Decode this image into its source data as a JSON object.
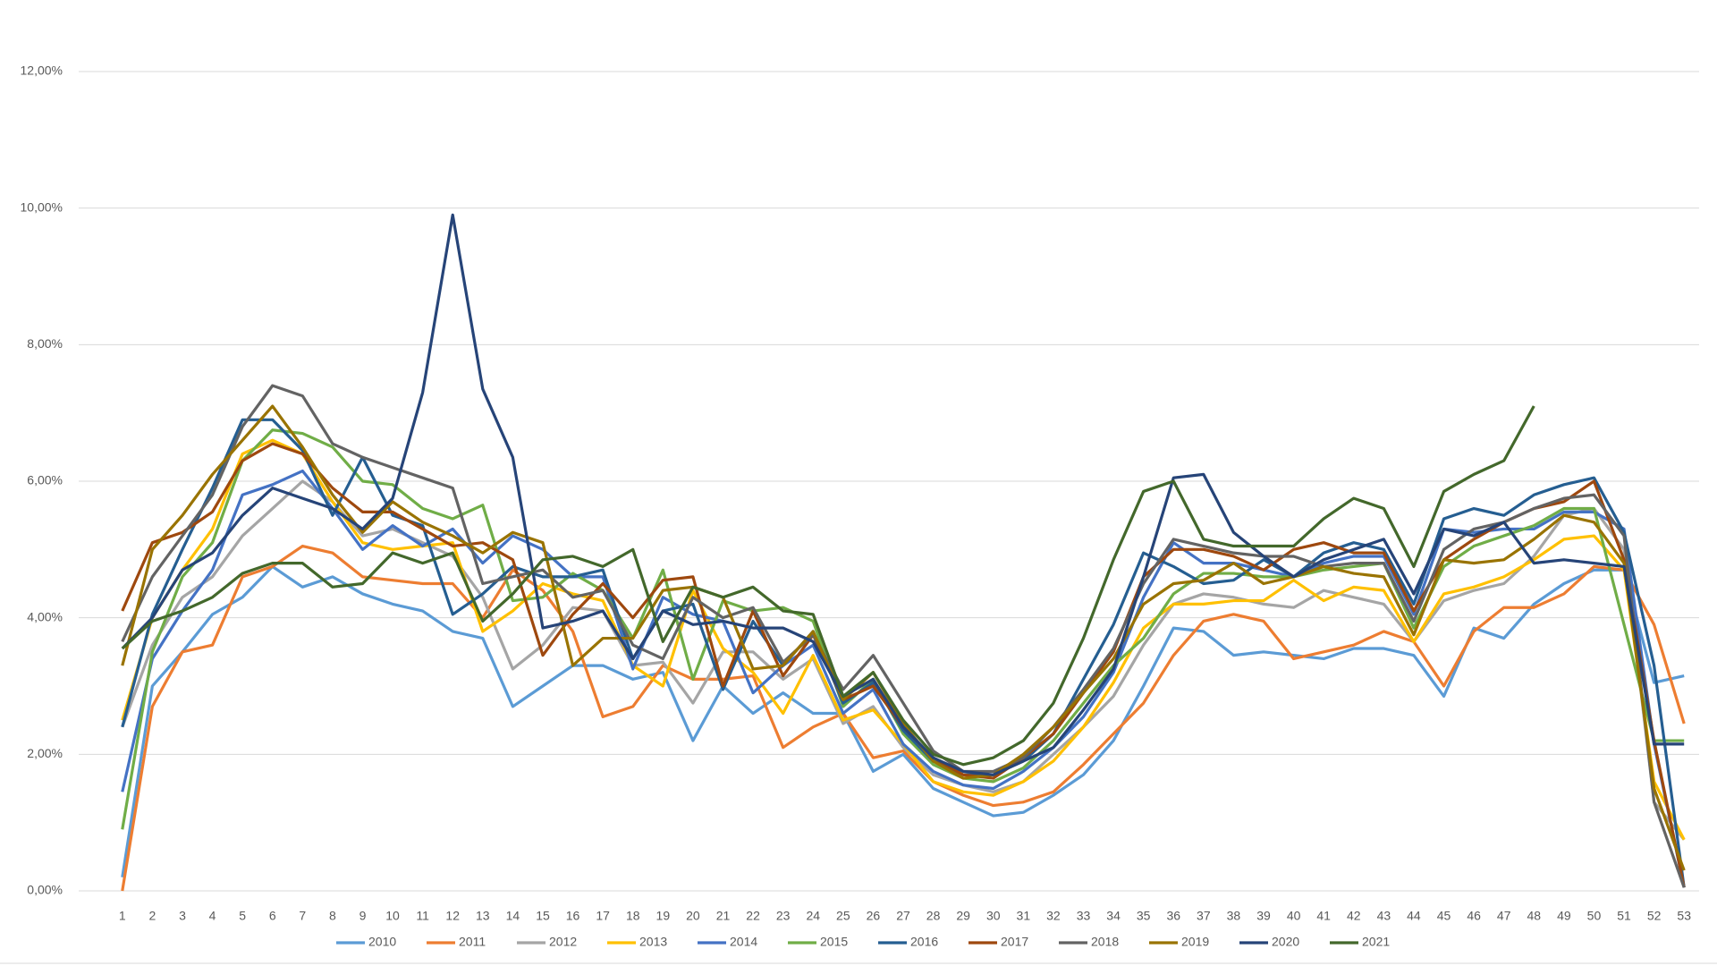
{
  "chart_data": {
    "type": "line",
    "categories": [
      "1",
      "2",
      "3",
      "4",
      "5",
      "6",
      "7",
      "8",
      "9",
      "10",
      "11",
      "12",
      "13",
      "14",
      "15",
      "16",
      "17",
      "18",
      "19",
      "20",
      "21",
      "22",
      "23",
      "24",
      "25",
      "26",
      "27",
      "28",
      "29",
      "30",
      "31",
      "32",
      "33",
      "34",
      "35",
      "36",
      "37",
      "38",
      "39",
      "40",
      "41",
      "42",
      "43",
      "44",
      "45",
      "46",
      "47",
      "48",
      "49",
      "50",
      "51",
      "52",
      "53"
    ],
    "ylim": [
      0,
      12
    ],
    "yticks": [
      {
        "value": 0,
        "label": "0,00%"
      },
      {
        "value": 2,
        "label": "2,00%"
      },
      {
        "value": 4,
        "label": "4,00%"
      },
      {
        "value": 6,
        "label": "6,00%"
      },
      {
        "value": 8,
        "label": "8,00%"
      },
      {
        "value": 10,
        "label": "10,00%"
      },
      {
        "value": 12,
        "label": "12,00%"
      }
    ],
    "grid": true,
    "legend": "bottom",
    "series": [
      {
        "name": "2010",
        "color": "#5b9bd5",
        "values": [
          0.2,
          3.0,
          3.5,
          4.05,
          4.3,
          4.75,
          4.45,
          4.6,
          4.35,
          4.2,
          4.1,
          3.8,
          3.7,
          2.7,
          3.0,
          3.3,
          3.3,
          3.1,
          3.2,
          2.2,
          3.0,
          2.6,
          2.9,
          2.6,
          2.6,
          1.75,
          2.0,
          1.5,
          1.3,
          1.1,
          1.15,
          1.4,
          1.7,
          2.2,
          3.0,
          3.85,
          3.8,
          3.45,
          3.5,
          3.45,
          3.4,
          3.55,
          3.55,
          3.45,
          2.85,
          3.85,
          3.7,
          4.2,
          4.5,
          4.7,
          4.7,
          3.05,
          3.15
        ]
      },
      {
        "name": "2011",
        "color": "#ed7d31",
        "values": [
          0.0,
          2.7,
          3.5,
          3.6,
          4.6,
          4.75,
          5.05,
          4.95,
          4.6,
          4.55,
          4.5,
          4.5,
          4.0,
          4.7,
          4.4,
          3.8,
          2.55,
          2.7,
          3.3,
          3.1,
          3.1,
          3.15,
          2.1,
          2.4,
          2.6,
          1.95,
          2.05,
          1.6,
          1.4,
          1.25,
          1.3,
          1.45,
          1.85,
          2.3,
          2.75,
          3.45,
          3.95,
          4.05,
          3.95,
          3.4,
          3.5,
          3.6,
          3.8,
          3.65,
          3.0,
          3.8,
          4.15,
          4.15,
          4.35,
          4.75,
          4.7,
          3.9,
          2.45
        ]
      },
      {
        "name": "2012",
        "color": "#a5a5a5",
        "values": [
          2.4,
          3.6,
          4.3,
          4.6,
          5.2,
          5.6,
          6.0,
          5.7,
          5.2,
          5.3,
          5.1,
          4.9,
          4.3,
          3.25,
          3.6,
          4.15,
          4.1,
          3.3,
          3.35,
          2.75,
          3.5,
          3.5,
          3.1,
          3.4,
          2.45,
          2.7,
          2.1,
          1.7,
          1.55,
          1.45,
          1.6,
          2.0,
          2.4,
          2.85,
          3.6,
          4.2,
          4.35,
          4.3,
          4.2,
          4.15,
          4.4,
          4.3,
          4.2,
          3.65,
          4.25,
          4.4,
          4.5,
          4.9,
          5.5,
          5.6,
          5.0,
          1.3,
          0.75
        ]
      },
      {
        "name": "2013",
        "color": "#ffc000",
        "values": [
          2.5,
          4.0,
          4.7,
          5.3,
          6.4,
          6.6,
          6.4,
          5.7,
          5.1,
          5.0,
          5.05,
          5.1,
          3.8,
          4.1,
          4.5,
          4.35,
          4.25,
          3.3,
          3.0,
          4.4,
          3.55,
          3.2,
          2.6,
          3.45,
          2.5,
          2.65,
          2.15,
          1.6,
          1.45,
          1.4,
          1.6,
          1.9,
          2.4,
          3.05,
          3.85,
          4.2,
          4.2,
          4.25,
          4.25,
          4.55,
          4.25,
          4.45,
          4.4,
          3.65,
          4.35,
          4.45,
          4.6,
          4.85,
          5.15,
          5.2,
          4.7,
          1.6,
          0.75
        ]
      },
      {
        "name": "2014",
        "color": "#4472c4",
        "values": [
          1.45,
          3.4,
          4.1,
          4.7,
          5.8,
          5.95,
          6.15,
          5.6,
          5.0,
          5.35,
          5.05,
          5.3,
          4.8,
          5.2,
          5.0,
          4.6,
          4.6,
          3.25,
          4.3,
          4.05,
          3.95,
          2.9,
          3.3,
          3.6,
          2.6,
          2.95,
          2.15,
          1.75,
          1.55,
          1.5,
          1.75,
          2.1,
          2.55,
          3.2,
          4.3,
          5.1,
          4.8,
          4.8,
          4.7,
          4.6,
          4.8,
          4.9,
          4.9,
          4.05,
          5.3,
          5.25,
          5.3,
          5.3,
          5.55,
          5.55,
          5.3,
          2.15,
          0.05
        ]
      },
      {
        "name": "2015",
        "color": "#70ad47",
        "values": [
          0.9,
          3.5,
          4.6,
          5.1,
          6.3,
          6.75,
          6.7,
          6.5,
          6.0,
          5.95,
          5.6,
          5.45,
          5.65,
          4.25,
          4.3,
          4.65,
          4.4,
          3.7,
          4.7,
          3.1,
          4.25,
          4.1,
          4.15,
          3.95,
          2.7,
          3.1,
          2.3,
          1.85,
          1.65,
          1.6,
          1.8,
          2.2,
          2.75,
          3.3,
          3.7,
          4.35,
          4.65,
          4.65,
          4.6,
          4.6,
          4.7,
          4.75,
          4.8,
          3.85,
          4.75,
          5.05,
          5.2,
          5.35,
          5.6,
          5.6,
          3.9,
          2.2,
          2.2
        ]
      },
      {
        "name": "2016",
        "color": "#255e91",
        "values": [
          2.4,
          4.05,
          5.0,
          5.9,
          6.9,
          6.9,
          6.45,
          5.5,
          6.35,
          5.5,
          5.35,
          4.05,
          4.35,
          4.75,
          4.6,
          4.6,
          4.7,
          3.4,
          4.1,
          4.2,
          2.95,
          3.95,
          3.3,
          3.8,
          2.75,
          3.05,
          2.35,
          1.9,
          1.7,
          1.7,
          1.9,
          2.3,
          3.1,
          3.9,
          4.95,
          4.75,
          4.5,
          4.55,
          4.85,
          4.6,
          4.95,
          5.1,
          5.0,
          4.2,
          5.45,
          5.6,
          5.5,
          5.8,
          5.95,
          6.05,
          5.25,
          3.3,
          0.05
        ]
      },
      {
        "name": "2017",
        "color": "#9e480e",
        "values": [
          4.1,
          5.1,
          5.25,
          5.55,
          6.3,
          6.55,
          6.4,
          5.9,
          5.55,
          5.55,
          5.3,
          5.05,
          5.1,
          4.85,
          3.45,
          4.05,
          4.5,
          4.0,
          4.55,
          4.6,
          3.0,
          4.1,
          3.15,
          3.75,
          2.8,
          3.0,
          2.4,
          1.95,
          1.7,
          1.65,
          1.95,
          2.3,
          2.9,
          3.5,
          4.6,
          5.0,
          5.0,
          4.9,
          4.7,
          5.0,
          5.1,
          4.95,
          4.95,
          4.1,
          4.85,
          5.15,
          5.4,
          5.6,
          5.7,
          6.0,
          4.85,
          2.2,
          0.05
        ]
      },
      {
        "name": "2018",
        "color": "#636363",
        "values": [
          3.65,
          4.6,
          5.2,
          5.8,
          6.8,
          7.4,
          7.25,
          6.55,
          6.35,
          6.2,
          6.05,
          5.9,
          4.5,
          4.6,
          4.7,
          4.3,
          4.4,
          3.6,
          3.4,
          4.3,
          4.0,
          4.15,
          3.35,
          3.75,
          2.95,
          3.45,
          2.75,
          2.05,
          1.75,
          1.75,
          1.95,
          2.4,
          2.95,
          3.55,
          4.5,
          5.15,
          5.05,
          4.95,
          4.9,
          4.9,
          4.75,
          4.8,
          4.8,
          3.95,
          5.0,
          5.3,
          5.4,
          5.6,
          5.75,
          5.8,
          5.2,
          1.3,
          0.05
        ]
      },
      {
        "name": "2019",
        "color": "#997300",
        "values": [
          3.3,
          5.0,
          5.5,
          6.1,
          6.6,
          7.1,
          6.5,
          5.8,
          5.25,
          5.7,
          5.4,
          5.2,
          4.95,
          5.25,
          5.1,
          3.3,
          3.7,
          3.7,
          4.4,
          4.45,
          4.3,
          3.25,
          3.3,
          3.8,
          2.8,
          3.2,
          2.45,
          1.9,
          1.65,
          1.7,
          2.0,
          2.4,
          2.9,
          3.4,
          4.2,
          4.5,
          4.55,
          4.8,
          4.5,
          4.6,
          4.75,
          4.65,
          4.6,
          3.75,
          4.85,
          4.8,
          4.85,
          5.15,
          5.5,
          5.4,
          4.8,
          1.5,
          0.3
        ]
      },
      {
        "name": "2020",
        "color": "#264478",
        "values": [
          3.55,
          4.0,
          4.7,
          4.95,
          5.5,
          5.9,
          5.75,
          5.6,
          5.3,
          5.75,
          7.3,
          9.9,
          7.35,
          6.35,
          3.85,
          3.95,
          4.1,
          3.4,
          4.1,
          3.9,
          3.95,
          3.85,
          3.85,
          3.65,
          2.85,
          3.1,
          2.4,
          1.95,
          1.75,
          1.7,
          1.9,
          2.1,
          2.65,
          3.25,
          4.6,
          6.05,
          6.1,
          5.25,
          4.9,
          4.6,
          4.85,
          5.0,
          5.15,
          4.35,
          5.3,
          5.2,
          5.4,
          4.8,
          4.85,
          4.8,
          4.75,
          2.15,
          2.15
        ]
      },
      {
        "name": "2021",
        "color": "#43682b",
        "values": [
          3.55,
          3.95,
          4.1,
          4.3,
          4.65,
          4.8,
          4.8,
          4.45,
          4.5,
          4.95,
          4.8,
          4.95,
          3.95,
          4.35,
          4.85,
          4.9,
          4.75,
          5.0,
          3.65,
          4.45,
          4.3,
          4.45,
          4.1,
          4.05,
          2.85,
          3.2,
          2.5,
          2.0,
          1.85,
          1.95,
          2.2,
          2.75,
          3.7,
          4.85,
          5.85,
          6.0,
          5.15,
          5.05,
          5.05,
          5.05,
          5.45,
          5.75,
          5.6,
          4.75,
          5.85,
          6.1,
          6.3,
          7.1,
          null,
          null,
          null,
          null,
          null
        ]
      }
    ]
  }
}
